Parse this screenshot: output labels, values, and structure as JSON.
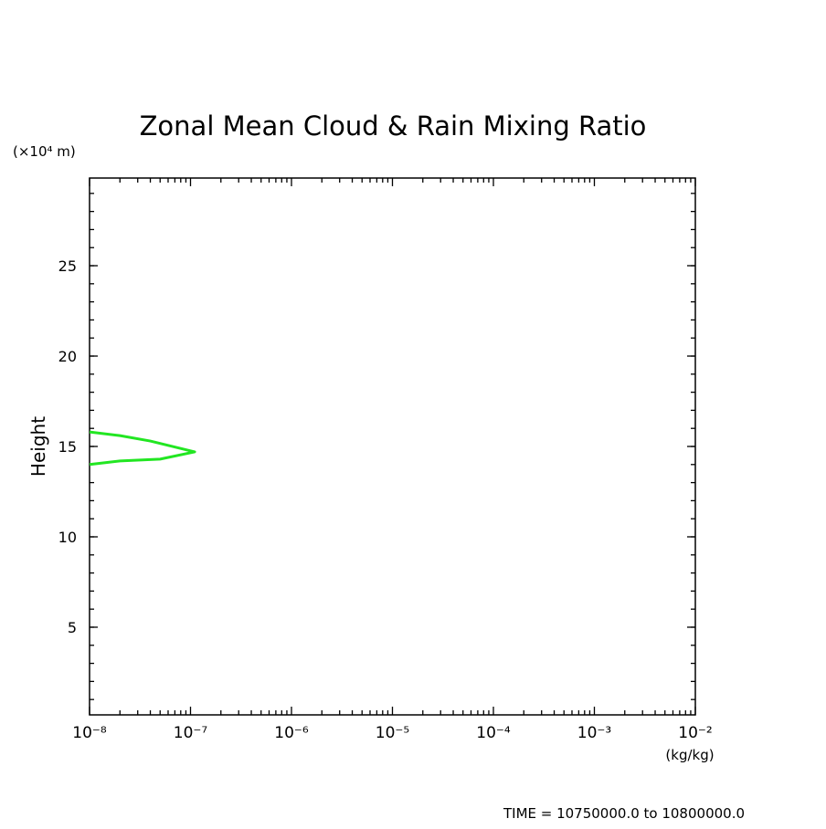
{
  "chart_data": {
    "type": "line",
    "title": "Zonal Mean Cloud & Rain Mixing Ratio",
    "y_unit_label": "(×10⁴ m)",
    "y_label": "Height",
    "x_label": "(kg/kg)",
    "annotation": "TIME = 10750000.0 to 10800000.0",
    "xscale": "log",
    "xlim": [
      1e-08,
      0.01
    ],
    "xticks": [
      {
        "value": 1e-08,
        "label": "10⁻⁸"
      },
      {
        "value": 1e-07,
        "label": "10⁻⁷"
      },
      {
        "value": 1e-06,
        "label": "10⁻⁶"
      },
      {
        "value": 1e-05,
        "label": "10⁻⁵"
      },
      {
        "value": 0.0001,
        "label": "10⁻⁴"
      },
      {
        "value": 0.001,
        "label": "10⁻³"
      },
      {
        "value": 0.01,
        "label": "10⁻²"
      }
    ],
    "ylim": [
      0.15,
      29.85
    ],
    "yticks": [
      5,
      10,
      15,
      20,
      25
    ],
    "series": [
      {
        "color": "#22e622",
        "x": [
          1e-08,
          2e-08,
          4e-08,
          1.1e-07,
          5e-08,
          2e-08,
          1e-08
        ],
        "values": [
          15.8,
          15.6,
          15.3,
          14.7,
          14.3,
          14.2,
          14.0
        ]
      }
    ]
  }
}
